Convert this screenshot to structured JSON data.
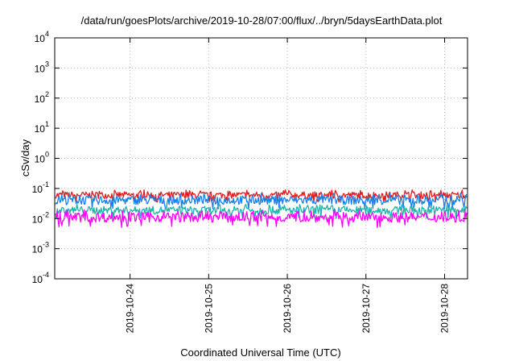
{
  "chart_data": {
    "type": "line",
    "title": "/data/run/goesPlots/archive/2019-10-28/07:00/flux/../bryn/5daysEarthData.plot",
    "xlabel": "Coordinated Universal Time (UTC)",
    "ylabel": "cSv/day",
    "yscale": "log",
    "ylim": [
      0.0001,
      10000
    ],
    "y_ticks": [
      {
        "base": "10",
        "exp": "-4"
      },
      {
        "base": "10",
        "exp": "-3"
      },
      {
        "base": "10",
        "exp": "-2"
      },
      {
        "base": "10",
        "exp": "-1"
      },
      {
        "base": "10",
        "exp": "0"
      },
      {
        "base": "10",
        "exp": "1"
      },
      {
        "base": "10",
        "exp": "2"
      },
      {
        "base": "10",
        "exp": "3"
      },
      {
        "base": "10",
        "exp": "4"
      }
    ],
    "xlim": [
      "2019-10-23T01:00",
      "2019-10-28T07:00"
    ],
    "x_ticks": [
      "2019-10-24",
      "2019-10-25",
      "2019-10-26",
      "2019-10-27",
      "2019-10-28"
    ],
    "grid": true,
    "series": [
      {
        "color": "#e41a1c",
        "level_range": [
          0.035,
          0.09
        ]
      },
      {
        "color": "#1a7fe4",
        "level_range": [
          0.02,
          0.07
        ]
      },
      {
        "color": "#20b2aa",
        "level_range": [
          0.01,
          0.03
        ]
      },
      {
        "color": "#ff00ff",
        "level_range": [
          0.005,
          0.02
        ]
      }
    ]
  }
}
